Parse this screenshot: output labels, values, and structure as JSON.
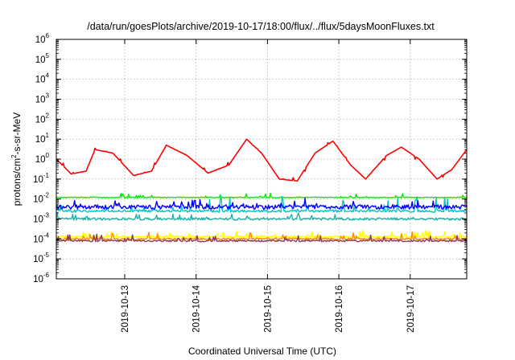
{
  "chart_data": {
    "type": "line",
    "title": "/data/run/goesPlots/archive/2019-10-17/18:00/flux/../flux/5daysMoonFluxes.txt",
    "xlabel": "Coordinated Universal Time (UTC)",
    "ylabel": "protons/cm²-s-sr-MeV",
    "ylabel_base": "protons/cm",
    "ylabel_sup": "2",
    "ylabel_rest": "-s-sr-MeV",
    "yscale": "log",
    "ylim": [
      1e-06,
      1000000.0
    ],
    "xlim": [
      "2019-10-12T01:00",
      "2019-10-17T19:00"
    ],
    "grid": true,
    "x_ticks": [
      "2019-10-13",
      "2019-10-14",
      "2019-10-15",
      "2019-10-16",
      "2019-10-17"
    ],
    "y_ticks": [
      {
        "base": "10",
        "exp": "-6"
      },
      {
        "base": "10",
        "exp": "-5"
      },
      {
        "base": "10",
        "exp": "-4"
      },
      {
        "base": "10",
        "exp": "-3"
      },
      {
        "base": "10",
        "exp": "-2"
      },
      {
        "base": "10",
        "exp": "-1"
      },
      {
        "base": "10",
        "exp": "0"
      },
      {
        "base": "10",
        "exp": "1"
      },
      {
        "base": "10",
        "exp": "2"
      },
      {
        "base": "10",
        "exp": "3"
      },
      {
        "base": "10",
        "exp": "4"
      },
      {
        "base": "10",
        "exp": "5"
      },
      {
        "base": "10",
        "exp": "6"
      }
    ],
    "series": [
      {
        "color": "#ff0000",
        "x": [
          "2019-10-12T01:00",
          "2019-10-12T06:00",
          "2019-10-12T11:00",
          "2019-10-12T14:00",
          "2019-10-12T20:00",
          "2019-10-13T03:00",
          "2019-10-13T09:00",
          "2019-10-13T14:00",
          "2019-10-13T21:00",
          "2019-10-14T04:00",
          "2019-10-14T11:00",
          "2019-10-14T17:00",
          "2019-10-14T22:00",
          "2019-10-15T04:00",
          "2019-10-15T10:00",
          "2019-10-15T16:00",
          "2019-10-15T22:00",
          "2019-10-16T04:00",
          "2019-10-16T09:00",
          "2019-10-16T16:00",
          "2019-10-16T21:00",
          "2019-10-17T03:00",
          "2019-10-17T09:00",
          "2019-10-17T14:00",
          "2019-10-17T19:00"
        ],
        "y": [
          1.0,
          0.18,
          0.25,
          3.0,
          2.0,
          0.15,
          0.25,
          5.0,
          1.5,
          0.2,
          0.5,
          10,
          2.0,
          0.1,
          0.08,
          2.0,
          8.0,
          0.5,
          0.1,
          1.5,
          4.0,
          1.0,
          0.1,
          0.3,
          3.0
        ]
      },
      {
        "color": "#00ee00",
        "x": [
          "2019-10-12T01:00",
          "2019-10-12T12:00",
          "2019-10-13T00:00",
          "2019-10-13T12:00",
          "2019-10-14T00:00",
          "2019-10-14T12:00",
          "2019-10-15T00:00",
          "2019-10-15T12:00",
          "2019-10-16T00:00",
          "2019-10-16T12:00",
          "2019-10-17T00:00",
          "2019-10-17T19:00"
        ],
        "y": [
          0.012,
          0.012,
          0.012,
          0.012,
          0.012,
          0.012,
          0.012,
          0.012,
          0.012,
          0.012,
          0.012,
          0.012
        ]
      },
      {
        "color": "#00c8c8",
        "x": [
          "2019-10-12T01:00",
          "2019-10-12T12:00",
          "2019-10-13T00:00",
          "2019-10-13T12:00",
          "2019-10-14T00:00",
          "2019-10-14T12:00",
          "2019-10-15T00:00",
          "2019-10-15T12:00",
          "2019-10-16T00:00",
          "2019-10-16T12:00",
          "2019-10-17T00:00",
          "2019-10-17T19:00"
        ],
        "y": [
          0.0025,
          0.0025,
          0.0025,
          0.0025,
          0.0025,
          0.0025,
          0.0025,
          0.0025,
          0.0025,
          0.0025,
          0.0025,
          0.0025
        ]
      },
      {
        "color": "#0000ff",
        "x": [
          "2019-10-12T01:00",
          "2019-10-12T12:00",
          "2019-10-13T00:00",
          "2019-10-13T12:00",
          "2019-10-14T00:00",
          "2019-10-14T12:00",
          "2019-10-15T00:00",
          "2019-10-15T12:00",
          "2019-10-16T00:00",
          "2019-10-16T12:00",
          "2019-10-17T00:00",
          "2019-10-17T19:00"
        ],
        "y": [
          0.004,
          0.004,
          0.004,
          0.004,
          0.004,
          0.004,
          0.004,
          0.004,
          0.004,
          0.004,
          0.004,
          0.004
        ]
      },
      {
        "color": "#20b2aa",
        "x": [
          "2019-10-12T01:00",
          "2019-10-12T12:00",
          "2019-10-13T00:00",
          "2019-10-13T12:00",
          "2019-10-14T00:00",
          "2019-10-14T12:00",
          "2019-10-15T00:00",
          "2019-10-15T12:00",
          "2019-10-16T00:00",
          "2019-10-16T12:00",
          "2019-10-17T00:00",
          "2019-10-17T19:00"
        ],
        "y": [
          0.001,
          0.001,
          0.001,
          0.001,
          0.001,
          0.001,
          0.001,
          0.001,
          0.001,
          0.001,
          0.001,
          0.001
        ]
      },
      {
        "color": "#ffff00",
        "x": [
          "2019-10-12T01:00",
          "2019-10-12T12:00",
          "2019-10-13T00:00",
          "2019-10-13T12:00",
          "2019-10-14T00:00",
          "2019-10-14T12:00",
          "2019-10-15T00:00",
          "2019-10-15T12:00",
          "2019-10-16T00:00",
          "2019-10-16T12:00",
          "2019-10-17T00:00",
          "2019-10-17T19:00"
        ],
        "y": [
          0.00013,
          0.00013,
          0.00013,
          0.00013,
          0.00013,
          0.00013,
          0.00013,
          0.00013,
          0.00013,
          0.00013,
          0.00013,
          0.00013
        ]
      },
      {
        "color": "#ff8c00",
        "x": [
          "2019-10-12T01:00",
          "2019-10-12T12:00",
          "2019-10-13T00:00",
          "2019-10-13T12:00",
          "2019-10-14T00:00",
          "2019-10-14T12:00",
          "2019-10-15T00:00",
          "2019-10-15T12:00",
          "2019-10-16T00:00",
          "2019-10-16T12:00",
          "2019-10-17T00:00",
          "2019-10-17T19:00"
        ],
        "y": [
          0.0001,
          0.0001,
          0.0001,
          0.0001,
          0.0001,
          0.0001,
          0.0001,
          0.0001,
          0.0001,
          0.0001,
          0.0001,
          0.0001
        ]
      },
      {
        "color": "#8b3a62",
        "x": [
          "2019-10-12T01:00",
          "2019-10-12T12:00",
          "2019-10-13T00:00",
          "2019-10-13T12:00",
          "2019-10-14T00:00",
          "2019-10-14T12:00",
          "2019-10-15T00:00",
          "2019-10-15T12:00",
          "2019-10-16T00:00",
          "2019-10-16T12:00",
          "2019-10-17T00:00",
          "2019-10-17T19:00"
        ],
        "y": [
          8e-05,
          8e-05,
          8e-05,
          8e-05,
          8e-05,
          8e-05,
          8e-05,
          8e-05,
          8e-05,
          8e-05,
          8e-05,
          8e-05
        ]
      }
    ]
  }
}
